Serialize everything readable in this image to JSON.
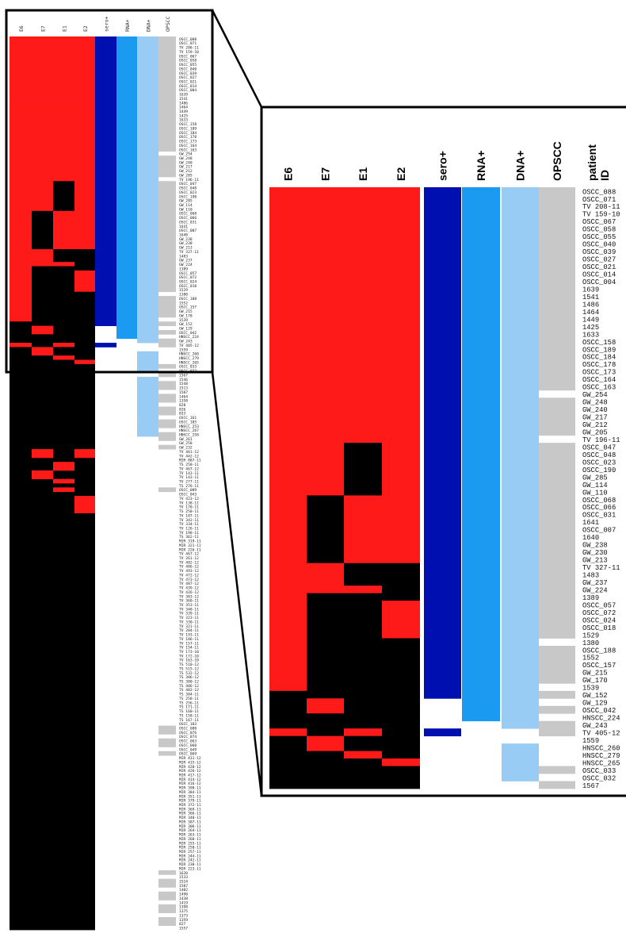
{
  "chart_data": {
    "type": "heatmap",
    "description_note": "",
    "columns": [
      "E6",
      "E7",
      "E1",
      "E2",
      "sero+",
      "RNA+",
      "DNA+",
      "OPSCC"
    ],
    "id_header": "patient ID",
    "colors": {
      "expressed": "#ff1a1a",
      "not_expressed": "#000000",
      "sero": "#0010b0",
      "rna": "#1a9af0",
      "dna": "#99ccf5",
      "opscc": "#c8c8c8",
      "frame": "#000000"
    },
    "zoom_rows": [
      {
        "id": "OSCC_088",
        "E6": 1,
        "E7": 1,
        "E1": 1,
        "E2": 1,
        "sero": 1,
        "rna": 1,
        "dna": 1,
        "opscc": 1
      },
      {
        "id": "OSCC_071",
        "E6": 1,
        "E7": 1,
        "E1": 1,
        "E2": 1,
        "sero": 1,
        "rna": 1,
        "dna": 1,
        "opscc": 1
      },
      {
        "id": "TV 208-11",
        "E6": 1,
        "E7": 1,
        "E1": 1,
        "E2": 1,
        "sero": 1,
        "rna": 1,
        "dna": 1,
        "opscc": 1
      },
      {
        "id": "TV 159-10",
        "E6": 1,
        "E7": 1,
        "E1": 1,
        "E2": 1,
        "sero": 1,
        "rna": 1,
        "dna": 1,
        "opscc": 1
      },
      {
        "id": "OSCC_067",
        "E6": 1,
        "E7": 1,
        "E1": 1,
        "E2": 1,
        "sero": 1,
        "rna": 1,
        "dna": 1,
        "opscc": 1
      },
      {
        "id": "OSCC_058",
        "E6": 1,
        "E7": 1,
        "E1": 1,
        "E2": 1,
        "sero": 1,
        "rna": 1,
        "dna": 1,
        "opscc": 1
      },
      {
        "id": "OSCC_055",
        "E6": 1,
        "E7": 1,
        "E1": 1,
        "E2": 1,
        "sero": 1,
        "rna": 1,
        "dna": 1,
        "opscc": 1
      },
      {
        "id": "OSCC_040",
        "E6": 1,
        "E7": 1,
        "E1": 1,
        "E2": 1,
        "sero": 1,
        "rna": 1,
        "dna": 1,
        "opscc": 1
      },
      {
        "id": "OSCC_039",
        "E6": 1,
        "E7": 1,
        "E1": 1,
        "E2": 1,
        "sero": 1,
        "rna": 1,
        "dna": 1,
        "opscc": 1
      },
      {
        "id": "OSCC_027",
        "E6": 1,
        "E7": 1,
        "E1": 1,
        "E2": 1,
        "sero": 1,
        "rna": 1,
        "dna": 1,
        "opscc": 1
      },
      {
        "id": "OSCC_021",
        "E6": 1,
        "E7": 1,
        "E1": 1,
        "E2": 1,
        "sero": 1,
        "rna": 1,
        "dna": 1,
        "opscc": 1
      },
      {
        "id": "OSCC_014",
        "E6": 1,
        "E7": 1,
        "E1": 1,
        "E2": 1,
        "sero": 1,
        "rna": 1,
        "dna": 1,
        "opscc": 1
      },
      {
        "id": "OSCC_004",
        "E6": 1,
        "E7": 1,
        "E1": 1,
        "E2": 1,
        "sero": 1,
        "rna": 1,
        "dna": 1,
        "opscc": 1
      },
      {
        "id": "1639",
        "E6": 1,
        "E7": 1,
        "E1": 1,
        "E2": 1,
        "sero": 1,
        "rna": 1,
        "dna": 1,
        "opscc": 1
      },
      {
        "id": "1541",
        "E6": 1,
        "E7": 1,
        "E1": 1,
        "E2": 1,
        "sero": 1,
        "rna": 1,
        "dna": 1,
        "opscc": 1
      },
      {
        "id": "1486",
        "E6": 1,
        "E7": 1,
        "E1": 1,
        "E2": 1,
        "sero": 1,
        "rna": 1,
        "dna": 1,
        "opscc": 1
      },
      {
        "id": "1464",
        "E6": 1,
        "E7": 1,
        "E1": 1,
        "E2": 1,
        "sero": 1,
        "rna": 1,
        "dna": 1,
        "opscc": 1
      },
      {
        "id": "1449",
        "E6": 1,
        "E7": 1,
        "E1": 1,
        "E2": 1,
        "sero": 1,
        "rna": 1,
        "dna": 1,
        "opscc": 1
      },
      {
        "id": "1425",
        "E6": 1,
        "E7": 1,
        "E1": 1,
        "E2": 1,
        "sero": 1,
        "rna": 1,
        "dna": 1,
        "opscc": 1
      },
      {
        "id": "1633",
        "E6": 1,
        "E7": 1,
        "E1": 1,
        "E2": 1,
        "sero": 1,
        "rna": 1,
        "dna": 1,
        "opscc": 1
      },
      {
        "id": "OSCC_158",
        "E6": 1,
        "E7": 1,
        "E1": 1,
        "E2": 1,
        "sero": 1,
        "rna": 1,
        "dna": 1,
        "opscc": 1
      },
      {
        "id": "OSCC_189",
        "E6": 1,
        "E7": 1,
        "E1": 1,
        "E2": 1,
        "sero": 1,
        "rna": 1,
        "dna": 1,
        "opscc": 1
      },
      {
        "id": "OSCC_184",
        "E6": 1,
        "E7": 1,
        "E1": 1,
        "E2": 1,
        "sero": 1,
        "rna": 1,
        "dna": 1,
        "opscc": 1
      },
      {
        "id": "OSCC_178",
        "E6": 1,
        "E7": 1,
        "E1": 1,
        "E2": 1,
        "sero": 1,
        "rna": 1,
        "dna": 1,
        "opscc": 1
      },
      {
        "id": "OSCC_173",
        "E6": 1,
        "E7": 1,
        "E1": 1,
        "E2": 1,
        "sero": 1,
        "rna": 1,
        "dna": 1,
        "opscc": 1
      },
      {
        "id": "OSCC_164",
        "E6": 1,
        "E7": 1,
        "E1": 1,
        "E2": 1,
        "sero": 1,
        "rna": 1,
        "dna": 1,
        "opscc": 1
      },
      {
        "id": "OSCC_163",
        "E6": 1,
        "E7": 1,
        "E1": 1,
        "E2": 1,
        "sero": 1,
        "rna": 1,
        "dna": 1,
        "opscc": 1
      },
      {
        "id": "GW_254",
        "E6": 1,
        "E7": 1,
        "E1": 1,
        "E2": 1,
        "sero": 1,
        "rna": 1,
        "dna": 1,
        "opscc": 0
      },
      {
        "id": "GW_248",
        "E6": 1,
        "E7": 1,
        "E1": 1,
        "E2": 1,
        "sero": 1,
        "rna": 1,
        "dna": 1,
        "opscc": 1
      },
      {
        "id": "GW_240",
        "E6": 1,
        "E7": 1,
        "E1": 1,
        "E2": 1,
        "sero": 1,
        "rna": 1,
        "dna": 1,
        "opscc": 1
      },
      {
        "id": "GW_217",
        "E6": 1,
        "E7": 1,
        "E1": 1,
        "E2": 1,
        "sero": 1,
        "rna": 1,
        "dna": 1,
        "opscc": 1
      },
      {
        "id": "GW_212",
        "E6": 1,
        "E7": 1,
        "E1": 1,
        "E2": 1,
        "sero": 1,
        "rna": 1,
        "dna": 1,
        "opscc": 1
      },
      {
        "id": "GW_205",
        "E6": 1,
        "E7": 1,
        "E1": 1,
        "E2": 1,
        "sero": 1,
        "rna": 1,
        "dna": 1,
        "opscc": 1
      },
      {
        "id": "TV 196-11",
        "E6": 1,
        "E7": 1,
        "E1": 1,
        "E2": 1,
        "sero": 1,
        "rna": 1,
        "dna": 1,
        "opscc": 0
      },
      {
        "id": "OSCC_047",
        "E6": 1,
        "E7": 1,
        "E1": 0,
        "E2": 1,
        "sero": 1,
        "rna": 1,
        "dna": 1,
        "opscc": 1
      },
      {
        "id": "OSCC_048",
        "E6": 1,
        "E7": 1,
        "E1": 0,
        "E2": 1,
        "sero": 1,
        "rna": 1,
        "dna": 1,
        "opscc": 1
      },
      {
        "id": "OSCC_023",
        "E6": 1,
        "E7": 1,
        "E1": 0,
        "E2": 1,
        "sero": 1,
        "rna": 1,
        "dna": 1,
        "opscc": 1
      },
      {
        "id": "OSCC_190",
        "E6": 1,
        "E7": 1,
        "E1": 0,
        "E2": 1,
        "sero": 1,
        "rna": 1,
        "dna": 1,
        "opscc": 1
      },
      {
        "id": "GW_285",
        "E6": 1,
        "E7": 1,
        "E1": 0,
        "E2": 1,
        "sero": 1,
        "rna": 1,
        "dna": 1,
        "opscc": 1
      },
      {
        "id": "GW_114",
        "E6": 1,
        "E7": 1,
        "E1": 0,
        "E2": 1,
        "sero": 1,
        "rna": 1,
        "dna": 1,
        "opscc": 1
      },
      {
        "id": "GW_110",
        "E6": 1,
        "E7": 1,
        "E1": 0,
        "E2": 1,
        "sero": 1,
        "rna": 1,
        "dna": 1,
        "opscc": 1
      },
      {
        "id": "OSCC_068",
        "E6": 1,
        "E7": 0,
        "E1": 1,
        "E2": 1,
        "sero": 1,
        "rna": 1,
        "dna": 1,
        "opscc": 1
      },
      {
        "id": "OSCC_066",
        "E6": 1,
        "E7": 0,
        "E1": 1,
        "E2": 1,
        "sero": 1,
        "rna": 1,
        "dna": 1,
        "opscc": 1
      },
      {
        "id": "OSCC_031",
        "E6": 1,
        "E7": 0,
        "E1": 1,
        "E2": 1,
        "sero": 1,
        "rna": 1,
        "dna": 1,
        "opscc": 1
      },
      {
        "id": "1641",
        "E6": 1,
        "E7": 0,
        "E1": 1,
        "E2": 1,
        "sero": 1,
        "rna": 1,
        "dna": 1,
        "opscc": 1
      },
      {
        "id": "OSCC_007",
        "E6": 1,
        "E7": 0,
        "E1": 1,
        "E2": 1,
        "sero": 1,
        "rna": 1,
        "dna": 1,
        "opscc": 1
      },
      {
        "id": "1640",
        "E6": 1,
        "E7": 0,
        "E1": 1,
        "E2": 1,
        "sero": 1,
        "rna": 1,
        "dna": 1,
        "opscc": 1
      },
      {
        "id": "GW_238",
        "E6": 1,
        "E7": 0,
        "E1": 1,
        "E2": 1,
        "sero": 1,
        "rna": 1,
        "dna": 1,
        "opscc": 1
      },
      {
        "id": "GW_230",
        "E6": 1,
        "E7": 0,
        "E1": 1,
        "E2": 1,
        "sero": 1,
        "rna": 1,
        "dna": 1,
        "opscc": 1
      },
      {
        "id": "GW_213",
        "E6": 1,
        "E7": 0,
        "E1": 1,
        "E2": 1,
        "sero": 1,
        "rna": 1,
        "dna": 1,
        "opscc": 1
      },
      {
        "id": "TV 327-11",
        "E6": 1,
        "E7": 1,
        "E1": 0,
        "E2": 0,
        "sero": 1,
        "rna": 1,
        "dna": 1,
        "opscc": 1
      },
      {
        "id": "1483",
        "E6": 1,
        "E7": 1,
        "E1": 0,
        "E2": 0,
        "sero": 1,
        "rna": 1,
        "dna": 1,
        "opscc": 1
      },
      {
        "id": "GW_237",
        "E6": 1,
        "E7": 1,
        "E1": 0,
        "E2": 0,
        "sero": 1,
        "rna": 1,
        "dna": 1,
        "opscc": 1
      },
      {
        "id": "GW_224",
        "E6": 1,
        "E7": 1,
        "E1": 1,
        "E2": 0,
        "sero": 1,
        "rna": 1,
        "dna": 1,
        "opscc": 1
      },
      {
        "id": "1389",
        "E6": 1,
        "E7": 0,
        "E1": 0,
        "E2": 0,
        "sero": 1,
        "rna": 1,
        "dna": 1,
        "opscc": 1
      },
      {
        "id": "OSCC_057",
        "E6": 1,
        "E7": 0,
        "E1": 0,
        "E2": 1,
        "sero": 1,
        "rna": 1,
        "dna": 1,
        "opscc": 1
      },
      {
        "id": "OSCC_072",
        "E6": 1,
        "E7": 0,
        "E1": 0,
        "E2": 1,
        "sero": 1,
        "rna": 1,
        "dna": 1,
        "opscc": 1
      },
      {
        "id": "OSCC_024",
        "E6": 1,
        "E7": 0,
        "E1": 0,
        "E2": 1,
        "sero": 1,
        "rna": 1,
        "dna": 1,
        "opscc": 1
      },
      {
        "id": "OSCC_018",
        "E6": 1,
        "E7": 0,
        "E1": 0,
        "E2": 1,
        "sero": 1,
        "rna": 1,
        "dna": 1,
        "opscc": 1
      },
      {
        "id": "1529",
        "E6": 1,
        "E7": 0,
        "E1": 0,
        "E2": 1,
        "sero": 1,
        "rna": 1,
        "dna": 1,
        "opscc": 1
      },
      {
        "id": "1380",
        "E6": 1,
        "E7": 0,
        "E1": 0,
        "E2": 0,
        "sero": 1,
        "rna": 1,
        "dna": 1,
        "opscc": 0
      },
      {
        "id": "OSCC_188",
        "E6": 1,
        "E7": 0,
        "E1": 0,
        "E2": 0,
        "sero": 1,
        "rna": 1,
        "dna": 1,
        "opscc": 1
      },
      {
        "id": "1552",
        "E6": 1,
        "E7": 0,
        "E1": 0,
        "E2": 0,
        "sero": 1,
        "rna": 1,
        "dna": 1,
        "opscc": 1
      },
      {
        "id": "OSCC_157",
        "E6": 1,
        "E7": 0,
        "E1": 0,
        "E2": 0,
        "sero": 1,
        "rna": 1,
        "dna": 1,
        "opscc": 1
      },
      {
        "id": "GW_215",
        "E6": 1,
        "E7": 0,
        "E1": 0,
        "E2": 0,
        "sero": 1,
        "rna": 1,
        "dna": 1,
        "opscc": 1
      },
      {
        "id": "GW_170",
        "E6": 1,
        "E7": 0,
        "E1": 0,
        "E2": 0,
        "sero": 1,
        "rna": 1,
        "dna": 1,
        "opscc": 1
      },
      {
        "id": "1539",
        "E6": 1,
        "E7": 0,
        "E1": 0,
        "E2": 0,
        "sero": 1,
        "rna": 1,
        "dna": 1,
        "opscc": 0
      },
      {
        "id": "GW_152",
        "E6": 0,
        "E7": 0,
        "E1": 0,
        "E2": 0,
        "sero": 1,
        "rna": 1,
        "dna": 1,
        "opscc": 1
      },
      {
        "id": "GW_129",
        "E6": 0,
        "E7": 1,
        "E1": 0,
        "E2": 0,
        "sero": 0,
        "rna": 1,
        "dna": 1,
        "opscc": 0
      },
      {
        "id": "OSCC_042",
        "E6": 0,
        "E7": 1,
        "E1": 0,
        "E2": 0,
        "sero": 0,
        "rna": 1,
        "dna": 1,
        "opscc": 1
      },
      {
        "id": "HNSCC_224",
        "E6": 0,
        "E7": 0,
        "E1": 0,
        "E2": 0,
        "sero": 0,
        "rna": 1,
        "dna": 1,
        "opscc": 0
      },
      {
        "id": "GW_243",
        "E6": 0,
        "E7": 0,
        "E1": 0,
        "E2": 0,
        "sero": 0,
        "rna": 0,
        "dna": 1,
        "opscc": 1
      },
      {
        "id": "TV 405-12",
        "E6": 1,
        "E7": 0,
        "E1": 1,
        "E2": 0,
        "sero": 1,
        "rna": 0,
        "dna": 0,
        "opscc": 1
      },
      {
        "id": "1559",
        "E6": 0,
        "E7": 1,
        "E1": 0,
        "E2": 0,
        "sero": 0,
        "rna": 0,
        "dna": 0,
        "opscc": 0
      },
      {
        "id": "HNSCC_260",
        "E6": 0,
        "E7": 1,
        "E1": 0,
        "E2": 0,
        "sero": 0,
        "rna": 0,
        "dna": 1,
        "opscc": 0
      },
      {
        "id": "HNSCC_279",
        "E6": 0,
        "E7": 0,
        "E1": 1,
        "E2": 0,
        "sero": 0,
        "rna": 0,
        "dna": 1,
        "opscc": 0
      },
      {
        "id": "HNSCC_265",
        "E6": 0,
        "E7": 0,
        "E1": 0,
        "E2": 1,
        "sero": 0,
        "rna": 0,
        "dna": 1,
        "opscc": 0
      },
      {
        "id": "OSCC_033",
        "E6": 0,
        "E7": 0,
        "E1": 0,
        "E2": 0,
        "sero": 0,
        "rna": 0,
        "dna": 1,
        "opscc": 1
      },
      {
        "id": "OSCC_032",
        "E6": 0,
        "E7": 0,
        "E1": 0,
        "E2": 0,
        "sero": 0,
        "rna": 0,
        "dna": 1,
        "opscc": 0
      },
      {
        "id": "1567",
        "E6": 0,
        "E7": 0,
        "E1": 0,
        "E2": 0,
        "sero": 0,
        "rna": 0,
        "dna": 0,
        "opscc": 1
      }
    ],
    "overview_ids": [
      "OSCC_088",
      "OSCC_071",
      "TV 208-11",
      "TV 159-10",
      "OSCC_067",
      "OSCC_058",
      "OSCC_055",
      "OSCC_040",
      "OSCC_039",
      "OSCC_027",
      "OSCC_021",
      "OSCC_014",
      "OSCC_004",
      "1639",
      "1541",
      "1486",
      "1464",
      "1449",
      "1425",
      "1633",
      "OSCC_158",
      "OSCC_189",
      "OSCC_184",
      "OSCC_178",
      "OSCC_173",
      "OSCC_164",
      "OSCC_163",
      "GW_254",
      "GW_248",
      "GW_240",
      "GW_217",
      "GW_212",
      "GW_205",
      "TV 196-11",
      "OSCC_047",
      "OSCC_048",
      "OSCC_023",
      "OSCC_190",
      "GW_285",
      "GW_114",
      "GW_110",
      "OSCC_068",
      "OSCC_066",
      "OSCC_031",
      "1641",
      "OSCC_007",
      "1640",
      "GW_238",
      "GW_230",
      "GW_213",
      "TV 327-11",
      "1483",
      "GW_237",
      "GW_224",
      "1389",
      "OSCC_057",
      "OSCC_072",
      "OSCC_024",
      "OSCC_018",
      "1529",
      "1380",
      "OSCC_188",
      "1552",
      "OSCC_157",
      "GW_215",
      "GW_170",
      "1539",
      "GW_152",
      "GW_129",
      "OSCC_042",
      "HNSCC_224",
      "GW_243",
      "TV 405-12",
      "1559",
      "HNSCC_260",
      "HNSCC_279",
      "HNSCC_265",
      "OSCC_033",
      "OSCC_032",
      "1567",
      "1546",
      "1548",
      "1513",
      "1507",
      "1464",
      "1358",
      "828",
      "826",
      "833",
      "OSCC_161",
      "OSCC_185",
      "HNSCC_253",
      "HNSCC_267",
      "HNSCC_258",
      "GW_261",
      "GW_258",
      "GW_232",
      "TV 461-12",
      "TV 442-12",
      "MIR 087-11",
      "TS 258-11",
      "TV 467-12",
      "TV 143-11",
      "TV 143-11",
      "TV 277-11",
      "TS 276-11",
      "OSCC_089",
      "OSCC_043",
      "TV 423-12",
      "TV 138-11",
      "TV 170-11",
      "TS 250-11",
      "TV 187-11",
      "TV 342-11",
      "TV 334-11",
      "TV 126-11",
      "TV 198-11",
      "TS 362-11",
      "MIR 319-11",
      "MIR 321-11",
      "MIR 226-11",
      "TV 467-12",
      "TV 261-12",
      "TV 482-12",
      "TV 486-12",
      "TV 493-12",
      "TV 472-12",
      "TV 473-12",
      "TV 487-12",
      "TV 439-12",
      "TV 426-12",
      "TV 383-12",
      "TV 360-11",
      "TV 353-11",
      "TV 348-11",
      "TV 339-11",
      "TV 323-11",
      "TV 330-11",
      "TV 321-11",
      "TV 284-11",
      "TV 193-11",
      "TV 186-11",
      "TV 157-11",
      "TV 154-11",
      "TV 173-10",
      "TV 172-10",
      "TV 163-10",
      "TS 510-12",
      "TS 515-12",
      "TS 532-12",
      "TS 386-12",
      "TS 380-12",
      "TS 406-12",
      "TS 402-12",
      "TS 384-11",
      "TS 258-11",
      "TS 256-11",
      "TS 171-11",
      "TS 160-11",
      "TS 158-11",
      "TS 167-11",
      "OSCC_183",
      "OSCC_080",
      "OSCC_076",
      "OSCC_074",
      "OSCC_063",
      "OSCC_060",
      "OSCC_049",
      "OSCC_069",
      "MIR 431-12",
      "MIR 415-12",
      "MIR 420-12",
      "MIR 426-12",
      "MIR 417-12",
      "MIR 414-12",
      "MIR 416-12",
      "MIR 398-11",
      "MIR 384-11",
      "MIR 351-11",
      "MIR 379-11",
      "MIR 372-11",
      "MIR 369-11",
      "MIR 366-11",
      "MIR 340-11",
      "MIR 307-11",
      "MIR 306-11",
      "MIR 264-11",
      "MIR 263-11",
      "MIR 268-11",
      "MIR 255-11",
      "MIR 250-11",
      "MIR 257-11",
      "MIR 244-11",
      "MIR 242-11",
      "MIR 238-11",
      "MIR 223-11",
      "1620",
      "1533",
      "1524",
      "1507",
      "1402",
      "1490",
      "1438",
      "1419",
      "1398",
      "1375",
      "1373",
      "1359",
      "827",
      "1557"
    ]
  }
}
